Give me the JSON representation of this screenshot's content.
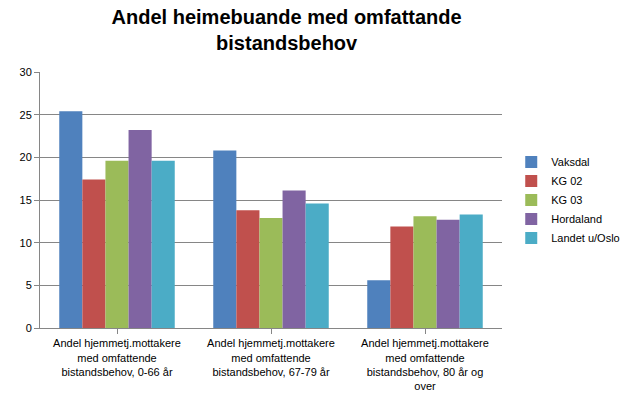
{
  "chart_data": {
    "type": "bar",
    "title": "Andel heimebuande med omfattande bistandsbehov",
    "categories": [
      "Andel hjemmetj.mottakere med omfattende bistandsbehov, 0-66 år",
      "Andel hjemmetj.mottakere med omfattende bistandsbehov, 67-79 år",
      "Andel hjemmetj.mottakere med omfattende bistandsbehov, 80 år og over"
    ],
    "series": [
      {
        "name": "Vaksdal",
        "color": "#4F81BD",
        "values": [
          25.4,
          20.8,
          5.6
        ]
      },
      {
        "name": "KG 02",
        "color": "#C0504D",
        "values": [
          17.4,
          13.8,
          11.9
        ]
      },
      {
        "name": "KG 03",
        "color": "#9BBB59",
        "values": [
          19.6,
          12.9,
          13.1
        ]
      },
      {
        "name": "Hordaland",
        "color": "#8064A2",
        "values": [
          23.2,
          16.1,
          12.7
        ]
      },
      {
        "name": "Landet u/Oslo",
        "color": "#4BACC6",
        "values": [
          19.6,
          14.6,
          13.3
        ]
      }
    ],
    "ylim": [
      0,
      30
    ],
    "yticks": [
      0,
      5,
      10,
      15,
      20,
      25,
      30
    ],
    "grid": true,
    "legend": "right"
  }
}
